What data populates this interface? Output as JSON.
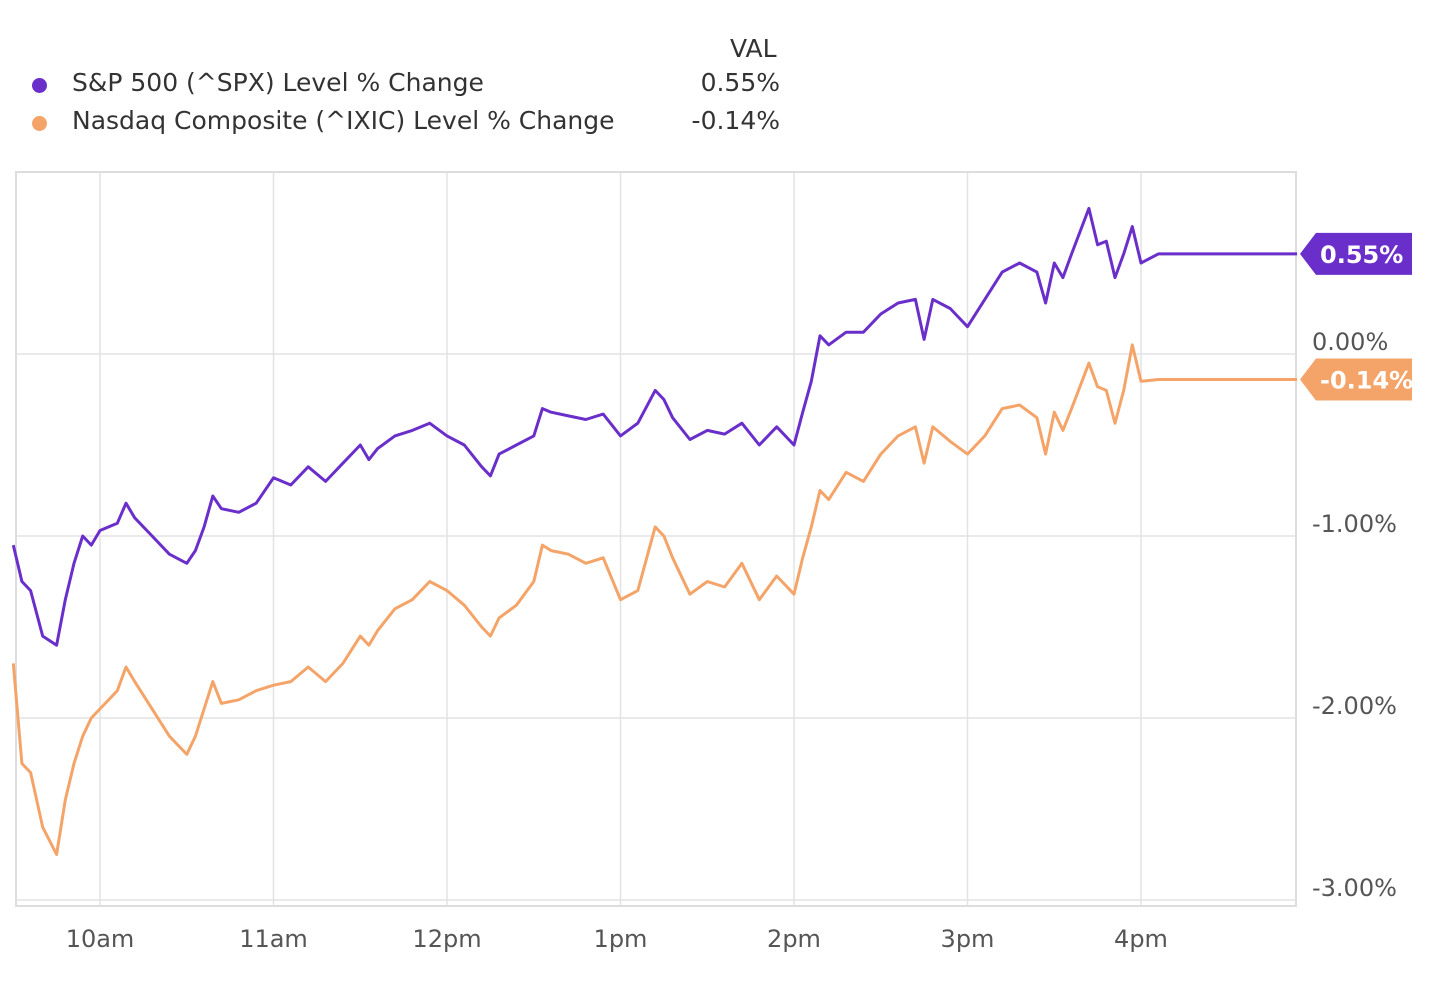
{
  "legend": {
    "header": "VAL"
  },
  "chart_data": {
    "type": "line",
    "x_ticks": [
      "10am",
      "11am",
      "12pm",
      "1pm",
      "2pm",
      "3pm",
      "4pm"
    ],
    "y_ticks": [
      {
        "value": 0.0,
        "label": "0.00%"
      },
      {
        "value": -1.0,
        "label": "-1.00%"
      },
      {
        "value": -2.0,
        "label": "-2.00%"
      },
      {
        "value": -3.0,
        "label": "-3.00%"
      }
    ],
    "ylim": [
      -3.1,
      1.0
    ],
    "xlim_hours": [
      9.5,
      16.9
    ],
    "grid": true,
    "legend_position": "top-left",
    "series": [
      {
        "name": "S&P 500 (^SPX) Level % Change",
        "value_label": "0.55%",
        "badge_label": "0.55%",
        "color": "#6a2fcb",
        "points": [
          [
            9.5,
            -1.05
          ],
          [
            9.55,
            -1.25
          ],
          [
            9.6,
            -1.3
          ],
          [
            9.67,
            -1.55
          ],
          [
            9.75,
            -1.6
          ],
          [
            9.8,
            -1.35
          ],
          [
            9.85,
            -1.15
          ],
          [
            9.9,
            -1.0
          ],
          [
            9.95,
            -1.05
          ],
          [
            10.0,
            -0.97
          ],
          [
            10.1,
            -0.93
          ],
          [
            10.15,
            -0.82
          ],
          [
            10.2,
            -0.9
          ],
          [
            10.3,
            -1.0
          ],
          [
            10.4,
            -1.1
          ],
          [
            10.5,
            -1.15
          ],
          [
            10.55,
            -1.08
          ],
          [
            10.6,
            -0.95
          ],
          [
            10.65,
            -0.78
          ],
          [
            10.7,
            -0.85
          ],
          [
            10.8,
            -0.87
          ],
          [
            10.9,
            -0.82
          ],
          [
            11.0,
            -0.68
          ],
          [
            11.1,
            -0.72
          ],
          [
            11.2,
            -0.62
          ],
          [
            11.3,
            -0.7
          ],
          [
            11.4,
            -0.6
          ],
          [
            11.5,
            -0.5
          ],
          [
            11.55,
            -0.58
          ],
          [
            11.6,
            -0.52
          ],
          [
            11.7,
            -0.45
          ],
          [
            11.8,
            -0.42
          ],
          [
            11.9,
            -0.38
          ],
          [
            12.0,
            -0.45
          ],
          [
            12.1,
            -0.5
          ],
          [
            12.2,
            -0.62
          ],
          [
            12.25,
            -0.67
          ],
          [
            12.3,
            -0.55
          ],
          [
            12.4,
            -0.5
          ],
          [
            12.5,
            -0.45
          ],
          [
            12.55,
            -0.3
          ],
          [
            12.6,
            -0.32
          ],
          [
            12.7,
            -0.34
          ],
          [
            12.8,
            -0.36
          ],
          [
            12.9,
            -0.33
          ],
          [
            13.0,
            -0.45
          ],
          [
            13.1,
            -0.38
          ],
          [
            13.2,
            -0.2
          ],
          [
            13.25,
            -0.25
          ],
          [
            13.3,
            -0.35
          ],
          [
            13.4,
            -0.47
          ],
          [
            13.5,
            -0.42
          ],
          [
            13.6,
            -0.44
          ],
          [
            13.7,
            -0.38
          ],
          [
            13.8,
            -0.5
          ],
          [
            13.9,
            -0.4
          ],
          [
            14.0,
            -0.5
          ],
          [
            14.05,
            -0.32
          ],
          [
            14.1,
            -0.15
          ],
          [
            14.15,
            0.1
          ],
          [
            14.2,
            0.05
          ],
          [
            14.3,
            0.12
          ],
          [
            14.4,
            0.12
          ],
          [
            14.5,
            0.22
          ],
          [
            14.6,
            0.28
          ],
          [
            14.7,
            0.3
          ],
          [
            14.75,
            0.08
          ],
          [
            14.8,
            0.3
          ],
          [
            14.9,
            0.25
          ],
          [
            15.0,
            0.15
          ],
          [
            15.1,
            0.3
          ],
          [
            15.2,
            0.45
          ],
          [
            15.3,
            0.5
          ],
          [
            15.4,
            0.45
          ],
          [
            15.45,
            0.28
          ],
          [
            15.5,
            0.5
          ],
          [
            15.55,
            0.42
          ],
          [
            15.6,
            0.55
          ],
          [
            15.7,
            0.8
          ],
          [
            15.75,
            0.6
          ],
          [
            15.8,
            0.62
          ],
          [
            15.85,
            0.42
          ],
          [
            15.9,
            0.55
          ],
          [
            15.95,
            0.7
          ],
          [
            16.0,
            0.5
          ],
          [
            16.1,
            0.55
          ],
          [
            16.9,
            0.55
          ]
        ]
      },
      {
        "name": "Nasdaq Composite (^IXIC) Level % Change",
        "value_label": "-0.14%",
        "badge_label": "-0.14%",
        "color": "#f4a468",
        "points": [
          [
            9.5,
            -1.7
          ],
          [
            9.55,
            -2.25
          ],
          [
            9.6,
            -2.3
          ],
          [
            9.67,
            -2.6
          ],
          [
            9.75,
            -2.75
          ],
          [
            9.8,
            -2.45
          ],
          [
            9.85,
            -2.25
          ],
          [
            9.9,
            -2.1
          ],
          [
            9.95,
            -2.0
          ],
          [
            10.0,
            -1.95
          ],
          [
            10.1,
            -1.85
          ],
          [
            10.15,
            -1.72
          ],
          [
            10.2,
            -1.8
          ],
          [
            10.3,
            -1.95
          ],
          [
            10.4,
            -2.1
          ],
          [
            10.5,
            -2.2
          ],
          [
            10.55,
            -2.1
          ],
          [
            10.6,
            -1.95
          ],
          [
            10.65,
            -1.8
          ],
          [
            10.7,
            -1.92
          ],
          [
            10.8,
            -1.9
          ],
          [
            10.9,
            -1.85
          ],
          [
            11.0,
            -1.82
          ],
          [
            11.1,
            -1.8
          ],
          [
            11.2,
            -1.72
          ],
          [
            11.3,
            -1.8
          ],
          [
            11.4,
            -1.7
          ],
          [
            11.5,
            -1.55
          ],
          [
            11.55,
            -1.6
          ],
          [
            11.6,
            -1.52
          ],
          [
            11.7,
            -1.4
          ],
          [
            11.8,
            -1.35
          ],
          [
            11.9,
            -1.25
          ],
          [
            12.0,
            -1.3
          ],
          [
            12.1,
            -1.38
          ],
          [
            12.2,
            -1.5
          ],
          [
            12.25,
            -1.55
          ],
          [
            12.3,
            -1.45
          ],
          [
            12.4,
            -1.38
          ],
          [
            12.5,
            -1.25
          ],
          [
            12.55,
            -1.05
          ],
          [
            12.6,
            -1.08
          ],
          [
            12.7,
            -1.1
          ],
          [
            12.8,
            -1.15
          ],
          [
            12.9,
            -1.12
          ],
          [
            13.0,
            -1.35
          ],
          [
            13.1,
            -1.3
          ],
          [
            13.2,
            -0.95
          ],
          [
            13.25,
            -1.0
          ],
          [
            13.3,
            -1.12
          ],
          [
            13.4,
            -1.32
          ],
          [
            13.5,
            -1.25
          ],
          [
            13.6,
            -1.28
          ],
          [
            13.7,
            -1.15
          ],
          [
            13.8,
            -1.35
          ],
          [
            13.9,
            -1.22
          ],
          [
            14.0,
            -1.32
          ],
          [
            14.05,
            -1.12
          ],
          [
            14.1,
            -0.95
          ],
          [
            14.15,
            -0.75
          ],
          [
            14.2,
            -0.8
          ],
          [
            14.3,
            -0.65
          ],
          [
            14.4,
            -0.7
          ],
          [
            14.5,
            -0.55
          ],
          [
            14.6,
            -0.45
          ],
          [
            14.7,
            -0.4
          ],
          [
            14.75,
            -0.6
          ],
          [
            14.8,
            -0.4
          ],
          [
            14.9,
            -0.48
          ],
          [
            15.0,
            -0.55
          ],
          [
            15.1,
            -0.45
          ],
          [
            15.2,
            -0.3
          ],
          [
            15.3,
            -0.28
          ],
          [
            15.4,
            -0.35
          ],
          [
            15.45,
            -0.55
          ],
          [
            15.5,
            -0.32
          ],
          [
            15.55,
            -0.42
          ],
          [
            15.6,
            -0.3
          ],
          [
            15.7,
            -0.05
          ],
          [
            15.75,
            -0.18
          ],
          [
            15.8,
            -0.2
          ],
          [
            15.85,
            -0.38
          ],
          [
            15.9,
            -0.2
          ],
          [
            15.95,
            0.05
          ],
          [
            16.0,
            -0.15
          ],
          [
            16.1,
            -0.14
          ],
          [
            16.9,
            -0.14
          ]
        ]
      }
    ]
  }
}
